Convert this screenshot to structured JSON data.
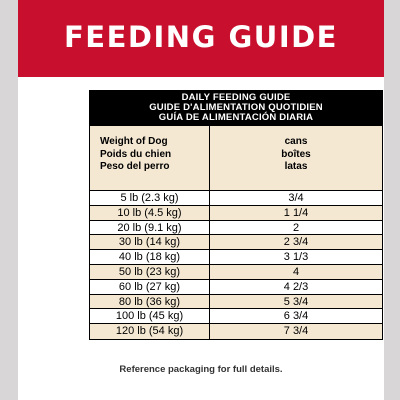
{
  "header": {
    "title": "FEEDING GUIDE"
  },
  "table": {
    "title_lines": [
      "DAILY FEEDING GUIDE",
      "GUIDE D'ALIMENTATION QUOTIDIEN",
      "GUÍA DE ALIMENTACIÓN DIARIA"
    ],
    "col1_header": [
      "Weight of Dog",
      "Poids du chien",
      "Peso del perro"
    ],
    "col2_header": [
      "cans",
      "boîtes",
      "latas"
    ],
    "rows": [
      {
        "weight": "5 lb (2.3 kg)",
        "cans": "3/4"
      },
      {
        "weight": "10 lb (4.5 kg)",
        "cans": "1 1/4"
      },
      {
        "weight": "20 lb (9.1 kg)",
        "cans": "2"
      },
      {
        "weight": "30 lb (14 kg)",
        "cans": "2 3/4"
      },
      {
        "weight": "40 lb (18 kg)",
        "cans": "3 1/3"
      },
      {
        "weight": "50 lb (23 kg)",
        "cans": "4"
      },
      {
        "weight": "60 lb (27 kg)",
        "cans": "4 2/3"
      },
      {
        "weight": "80 lb (36 kg)",
        "cans": "5 3/4"
      },
      {
        "weight": "100 lb (45 kg)",
        "cans": "6 3/4"
      },
      {
        "weight": "120 lb (54 kg)",
        "cans": "7 3/4"
      }
    ]
  },
  "footnote": "Reference packaging for full details.",
  "colors": {
    "header_red": "#c8102e",
    "cream": "#f4e8d3",
    "background": "#d8d6d6"
  }
}
